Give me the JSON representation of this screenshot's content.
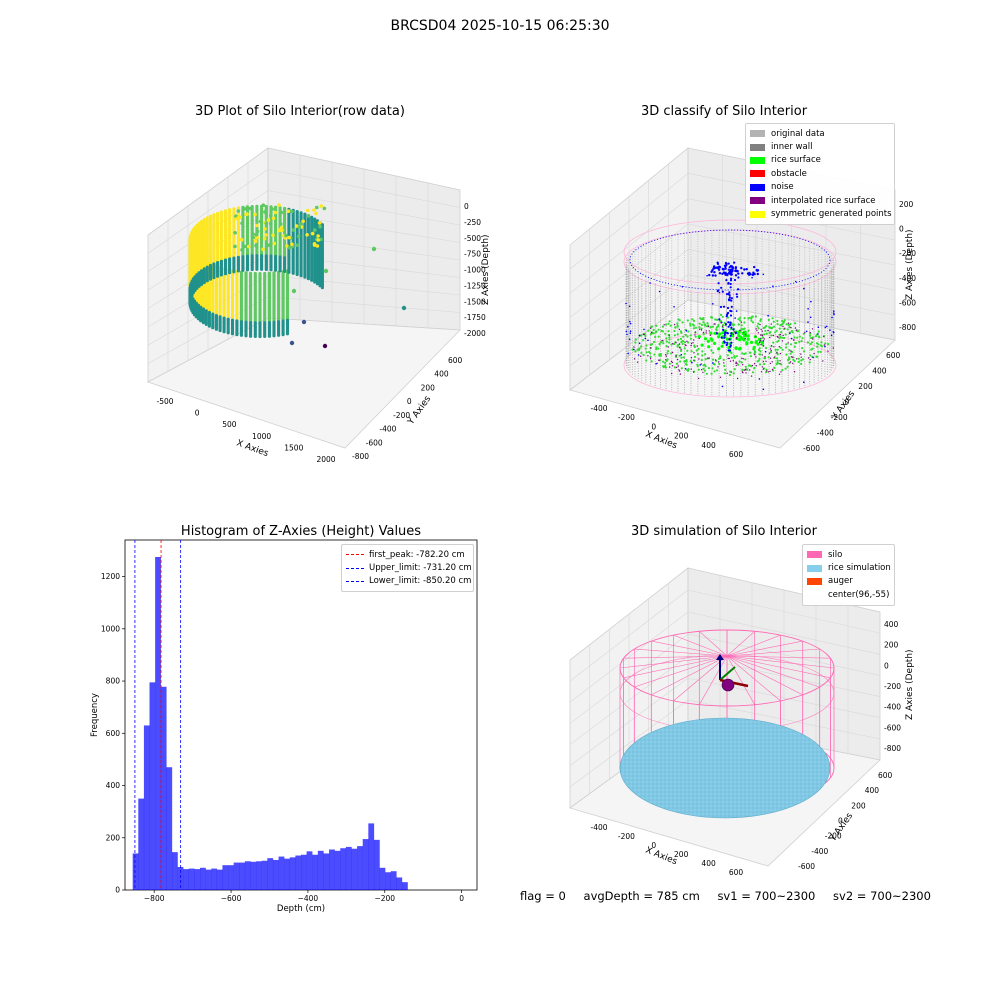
{
  "suptitle": "BRCSD04 2025-10-15 06:25:30",
  "footer": {
    "flag": "flag = 0",
    "avg_depth": "avgDepth = 785 cm",
    "sv1": "sv1 = 700~2300",
    "sv2": "sv2 = 700~2300"
  },
  "chart_data": [
    {
      "type": "scatter",
      "subtype": "3d",
      "title": "3D Plot of Silo Interior(row data)",
      "xlabel": "X Axies",
      "ylabel": "Y Axies",
      "zlabel": "Z Axies (Depth)",
      "x_ticks": [
        "-500",
        "0",
        "500",
        "1000",
        "1500",
        "2000"
      ],
      "y_ticks": [
        "600",
        "400",
        "200",
        "0",
        "-200",
        "-400",
        "-600",
        "-800"
      ],
      "z_ticks": [
        "0",
        "-250",
        "-500",
        "-750",
        "-1000",
        "-1250",
        "-1500",
        "-1750",
        "-2000"
      ],
      "colormap": [
        "#440154",
        "#3b528b",
        "#21918c",
        "#5ec962",
        "#fde725"
      ],
      "outliers": [
        {
          "x": 1500,
          "y": 200,
          "z": -1050
        },
        {
          "x": 1900,
          "y": 100,
          "z": -1500
        },
        {
          "x": 1200,
          "y": -200,
          "z": -1000
        },
        {
          "x": 500,
          "y": -300,
          "z": -1500
        },
        {
          "x": 800,
          "y": -500,
          "z": -1500
        },
        {
          "x": 300,
          "y": -600,
          "z": -1700
        },
        {
          "x": 900,
          "y": -700,
          "z": -1750
        }
      ]
    },
    {
      "type": "scatter",
      "subtype": "3d",
      "title": "3D classify of Silo Interior",
      "xlabel": "X Axies",
      "ylabel": "Y Axies",
      "zlabel": "Z Axies (Depth)",
      "x_ticks": [
        "-400",
        "-200",
        "0",
        "200",
        "400",
        "600"
      ],
      "y_ticks": [
        "600",
        "400",
        "200",
        "0",
        "-200",
        "-400",
        "-600"
      ],
      "z_ticks": [
        "200",
        "0",
        "-200",
        "-400",
        "-600",
        "-800"
      ],
      "legend": [
        {
          "label": "original data",
          "color": "#b3b3b3"
        },
        {
          "label": "inner wall",
          "color": "#808080"
        },
        {
          "label": "rice surface",
          "color": "#00ff00"
        },
        {
          "label": "obstacle",
          "color": "#ff0000"
        },
        {
          "label": "noise",
          "color": "#0000ff"
        },
        {
          "label": "interpolated rice surface",
          "color": "#800080"
        },
        {
          "label": "symmetric generated points",
          "color": "#ffff00"
        }
      ],
      "legend_position": "top-right"
    },
    {
      "type": "bar",
      "subtype": "histogram",
      "title": "Histogram of Z-Axies (Height) Values",
      "xlabel": "Depth (cm)",
      "ylabel": "Frequency",
      "xlim": [
        -876,
        40
      ],
      "ylim": [
        0,
        1340
      ],
      "x_ticks": [
        -800,
        -600,
        -400,
        -200,
        0
      ],
      "y_ticks": [
        0,
        200,
        400,
        600,
        800,
        1000,
        1200
      ],
      "bin_start": -856,
      "bin_width": 14.6,
      "values": [
        140,
        350,
        630,
        795,
        1275,
        778,
        470,
        145,
        88,
        80,
        82,
        80,
        85,
        78,
        82,
        78,
        95,
        95,
        105,
        105,
        110,
        108,
        110,
        112,
        122,
        115,
        128,
        120,
        125,
        132,
        135,
        148,
        135,
        150,
        140,
        155,
        150,
        160,
        165,
        158,
        168,
        195,
        255,
        192,
        85,
        68,
        72,
        48,
        30
      ],
      "bar_color": "#0000ff",
      "lines": [
        {
          "label": "first_peak: -782.20 cm",
          "value": -782.2,
          "color": "#ff0000"
        },
        {
          "label": "Upper_limit: -731.20 cm",
          "value": -731.2,
          "color": "#0000ff"
        },
        {
          "label": "Lower_limit: -850.20 cm",
          "value": -850.2,
          "color": "#0000ff"
        }
      ],
      "legend_position": "top-right"
    },
    {
      "type": "scatter",
      "subtype": "3d",
      "title": "3D simulation of Silo Interior",
      "xlabel": "X Axies",
      "ylabel": "Y Axies",
      "zlabel": "Z Axies (Depth)",
      "x_ticks": [
        "-400",
        "-200",
        "0",
        "200",
        "400",
        "600"
      ],
      "y_ticks": [
        "600",
        "400",
        "200",
        "0",
        "-200",
        "-400",
        "-600"
      ],
      "z_ticks": [
        "400",
        "200",
        "0",
        "-200",
        "-400",
        "-600",
        "-800"
      ],
      "legend": [
        {
          "label": "silo",
          "color": "#ff69b4"
        },
        {
          "label": "rice simulation",
          "color": "#87ceeb"
        },
        {
          "label": "auger",
          "color": "#ff4500"
        },
        {
          "label": "center(96,-55)",
          "color": ""
        }
      ],
      "legend_position": "top-right"
    }
  ]
}
